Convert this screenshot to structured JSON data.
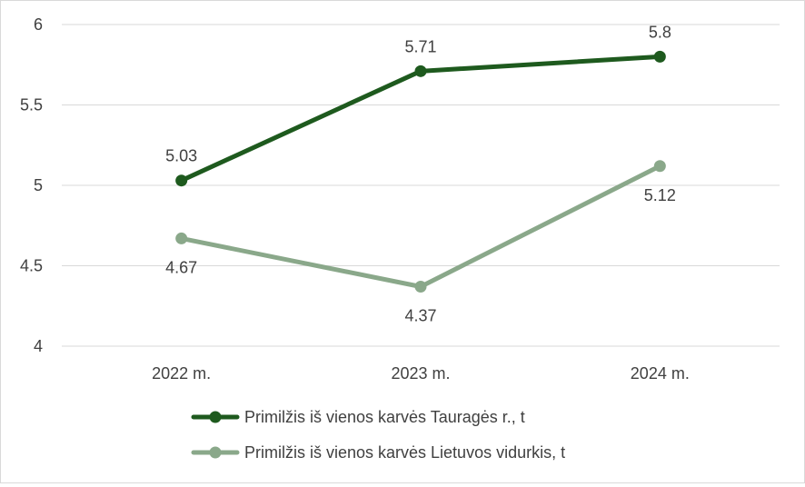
{
  "chart_data": {
    "type": "line",
    "title": "",
    "xlabel": "",
    "ylabel": "",
    "categories": [
      "2022 m.",
      "2023 m.",
      "2024 m."
    ],
    "ylim": [
      4,
      6
    ],
    "yticks": [
      4,
      4.5,
      5,
      5.5,
      6
    ],
    "ytick_labels": [
      "4",
      "4.5",
      "5",
      "5.5",
      "6"
    ],
    "grid": true,
    "legend_position": "bottom",
    "series": [
      {
        "name": "Primilžis iš vienos karvės Tauragės r., t",
        "values": [
          5.03,
          5.71,
          5.8
        ],
        "labels": [
          "5.03",
          "5.71",
          "5.8"
        ],
        "label_position": "above",
        "color": "#1e5a1e"
      },
      {
        "name": "Primilžis iš vienos karvės Lietuvos vidurkis, t",
        "values": [
          4.67,
          4.37,
          5.12
        ],
        "labels": [
          "4.67",
          "4.37",
          "5.12"
        ],
        "label_position": "below",
        "color": "#8aa88a"
      }
    ],
    "colors": {
      "gridline": "#d9d9d9",
      "text": "#404040"
    }
  }
}
